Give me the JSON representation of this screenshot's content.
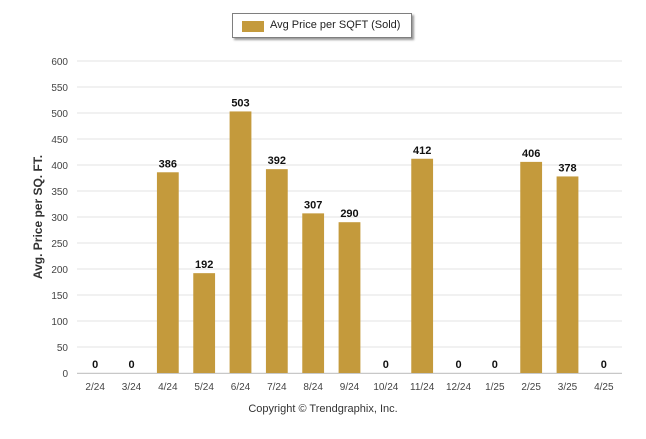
{
  "legend": {
    "label": "Avg Price per SQFT (Sold)"
  },
  "footer": {
    "copyright": "Copyright © Trendgraphix, Inc."
  },
  "colors": {
    "bar": "#c49a3c",
    "grid": "#e3e3e3",
    "axis_text": "#444444",
    "data_label": "#111111"
  },
  "chart_data": {
    "type": "bar",
    "title": "",
    "xlabel": "",
    "ylabel": "Avg. Price per SQ. FT.",
    "categories": [
      "2/24",
      "3/24",
      "4/24",
      "5/24",
      "6/24",
      "7/24",
      "8/24",
      "9/24",
      "10/24",
      "11/24",
      "12/24",
      "1/25",
      "2/25",
      "3/25",
      "4/25"
    ],
    "series": [
      {
        "name": "Avg Price per SQFT (Sold)",
        "values": [
          0,
          0,
          386,
          192,
          503,
          392,
          307,
          290,
          0,
          412,
          0,
          0,
          406,
          378,
          0
        ]
      }
    ],
    "ylim": [
      0,
      600
    ],
    "yticks": [
      0,
      50,
      100,
      150,
      200,
      250,
      300,
      350,
      400,
      450,
      500,
      550,
      600
    ],
    "grid": true,
    "legend_position": "top-center",
    "data_labels": true
  }
}
